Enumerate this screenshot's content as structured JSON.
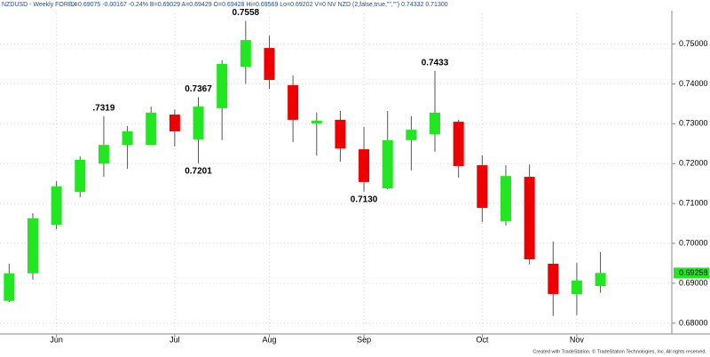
{
  "chart_data": {
    "type": "candlestick",
    "title": "NZDUSD - Weekly FOREX",
    "subtitle": "L=0.69075 -0.00167 -0.24% B=0.69029 A=0.69429 O=0.69428 Hi=0.69569 Lo=0.69202 V=0 NV NZD (2,false,true,\"\",\"\") 0.74332 0.71300",
    "footer": "Created with TradeStation. © TradeStation Technologies, Inc. All rights reserved.",
    "categories": [
      null,
      null,
      "Jun",
      null,
      null,
      null,
      null,
      "Jul",
      null,
      null,
      null,
      "Aug",
      null,
      null,
      null,
      "Sep",
      null,
      null,
      null,
      null,
      "Oct",
      null,
      null,
      null,
      "Nov",
      null
    ],
    "open": [
      0.6856,
      0.6925,
      0.7047,
      0.7129,
      0.72,
      0.7247,
      0.7247,
      0.7323,
      0.7261,
      0.7339,
      0.7443,
      0.749,
      0.7397,
      0.7301,
      0.731,
      0.7236,
      0.7138,
      0.7259,
      0.7274,
      0.7305,
      0.7196,
      0.7056,
      0.7167,
      0.6949,
      0.6873,
      0.6893
    ],
    "high": [
      0.6949,
      0.7076,
      0.7156,
      0.7218,
      0.7319,
      0.7294,
      0.7343,
      0.7336,
      0.7367,
      0.7459,
      0.7558,
      0.7521,
      0.7421,
      0.7328,
      0.7332,
      0.7292,
      0.7332,
      0.7319,
      0.7433,
      0.731,
      0.7221,
      0.7196,
      0.7198,
      0.7005,
      0.6951,
      0.6978
    ],
    "low": [
      0.6853,
      0.6909,
      0.7036,
      0.7116,
      0.7167,
      0.7187,
      0.7251,
      0.7243,
      0.7201,
      0.7259,
      0.74,
      0.7388,
      0.7254,
      0.722,
      0.7205,
      0.713,
      0.7136,
      0.7183,
      0.723,
      0.7165,
      0.7054,
      0.7045,
      0.6947,
      0.6818,
      0.682,
      0.6876
    ],
    "close": [
      0.6925,
      0.7063,
      0.7143,
      0.721,
      0.7247,
      0.7281,
      0.7328,
      0.7281,
      0.7343,
      0.745,
      0.751,
      0.741,
      0.731,
      0.7308,
      0.7238,
      0.7154,
      0.7259,
      0.7285,
      0.7328,
      0.7194,
      0.7089,
      0.7169,
      0.696,
      0.6873,
      0.6907,
      0.6926
    ],
    "up_color": "#22e622",
    "down_color": "#ee0000",
    "annotations": [
      ".7319",
      "0.7367",
      "0.7201",
      "0.7558",
      "0.7130",
      "0.7433"
    ],
    "last_price": {
      "value": 0.69258,
      "label": "0.69258"
    },
    "ylim": [
      0.6773,
      0.7577
    ],
    "yticks": [
      {
        "value": 0.68,
        "label": "0.68000"
      },
      {
        "value": 0.69,
        "label": "0.69000"
      },
      {
        "value": 0.7,
        "label": "0.70000"
      },
      {
        "value": 0.71,
        "label": "0.71000"
      },
      {
        "value": 0.72,
        "label": "0.72000"
      },
      {
        "value": 0.73,
        "label": "0.73000"
      },
      {
        "value": 0.74,
        "label": "0.74000"
      },
      {
        "value": 0.75,
        "label": "0.75000"
      }
    ],
    "grid": true
  }
}
